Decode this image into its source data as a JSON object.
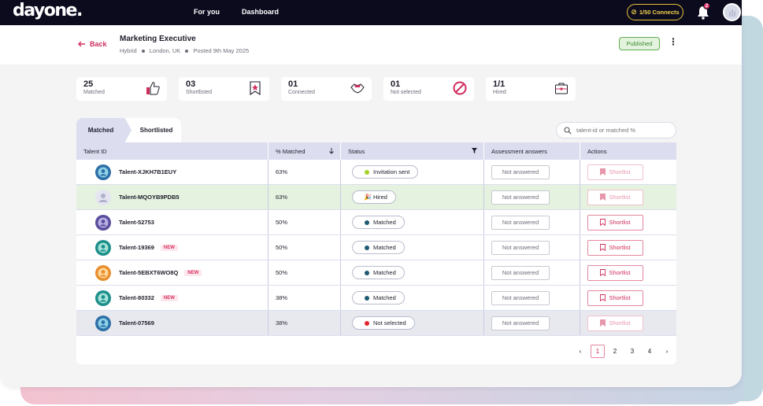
{
  "nav": {
    "logo": "dayone",
    "links": [
      "For you",
      "Dashboard"
    ],
    "connects_label": "1/50 Connects",
    "notification_count": "2"
  },
  "header": {
    "back_label": "Back",
    "job_title": "Marketing Executive",
    "meta": [
      "Hybrid",
      "London, UK",
      "Posted 9th May 2025"
    ],
    "status_label": "Published"
  },
  "stats": [
    {
      "value": "25",
      "label": "Matched",
      "icon": "thumbs-up-icon"
    },
    {
      "value": "03",
      "label": "Shortlisted",
      "icon": "star-bookmark-icon"
    },
    {
      "value": "01",
      "label": "Connected",
      "icon": "handshake-icon"
    },
    {
      "value": "01",
      "label": "Not selected",
      "icon": "not-allowed-icon"
    },
    {
      "value": "1/1",
      "label": "Hired",
      "icon": "briefcase-icon"
    }
  ],
  "tabs": [
    {
      "label": "Matched",
      "active": true
    },
    {
      "label": "Shortlisted",
      "active": false
    }
  ],
  "search": {
    "placeholder": "talent-id or matched %"
  },
  "table": {
    "columns": [
      "Talent ID",
      "% Matched",
      "Status",
      "Assessment answers",
      "Actions"
    ],
    "rows": [
      {
        "talent_id": "Talent-XJKH7B1EUY",
        "new": "",
        "matched": "63%",
        "status": "Invitation sent",
        "status_color": "#a6d12c",
        "answers": "Not answered",
        "action": "Shortlist",
        "action_state": "filled-faded",
        "row_style": "",
        "avatar": "blue"
      },
      {
        "talent_id": "Talent-MQOYB9PDB5",
        "new": "",
        "matched": "63%",
        "status": "Hired",
        "status_color": "",
        "answers": "Not answered",
        "action": "Shortlist",
        "action_state": "filled-faded",
        "row_style": "hired",
        "avatar": "placeholder"
      },
      {
        "talent_id": "Talent-52753",
        "new": "",
        "matched": "50%",
        "status": "Matched",
        "status_color": "#1f5a73",
        "answers": "Not answered",
        "action": "Shortlist",
        "action_state": "outline",
        "row_style": "",
        "avatar": "purple"
      },
      {
        "talent_id": "Talent-19369",
        "new": "NEW",
        "matched": "50%",
        "status": "Matched",
        "status_color": "#1f5a73",
        "answers": "Not answered",
        "action": "Shortlist",
        "action_state": "outline",
        "row_style": "",
        "avatar": "teal"
      },
      {
        "talent_id": "Talent-5EBXT6WO8Q",
        "new": "NEW",
        "matched": "50%",
        "status": "Matched",
        "status_color": "#1f5a73",
        "answers": "Not answered",
        "action": "Shortlist",
        "action_state": "outline",
        "row_style": "",
        "avatar": "orange"
      },
      {
        "talent_id": "Talent-80332",
        "new": "NEW",
        "matched": "38%",
        "status": "Matched",
        "status_color": "#1f5a73",
        "answers": "Not answered",
        "action": "Shortlist",
        "action_state": "outline",
        "row_style": "",
        "avatar": "teal"
      },
      {
        "talent_id": "Talent-07569",
        "new": "",
        "matched": "38%",
        "status": "Not selected",
        "status_color": "#e0262e",
        "answers": "Not answered",
        "action": "Shortlist",
        "action_state": "filled-faded",
        "row_style": "grey",
        "avatar": "blue"
      }
    ]
  },
  "pagination": {
    "pages": [
      "1",
      "2",
      "3",
      "4"
    ],
    "current": "1",
    "prev": "‹",
    "next": "›"
  },
  "colors": {
    "accent": "#cf2e5d",
    "navbar": "#0c0b1e",
    "table_header": "#dcdeef",
    "published": "#5fae53"
  }
}
